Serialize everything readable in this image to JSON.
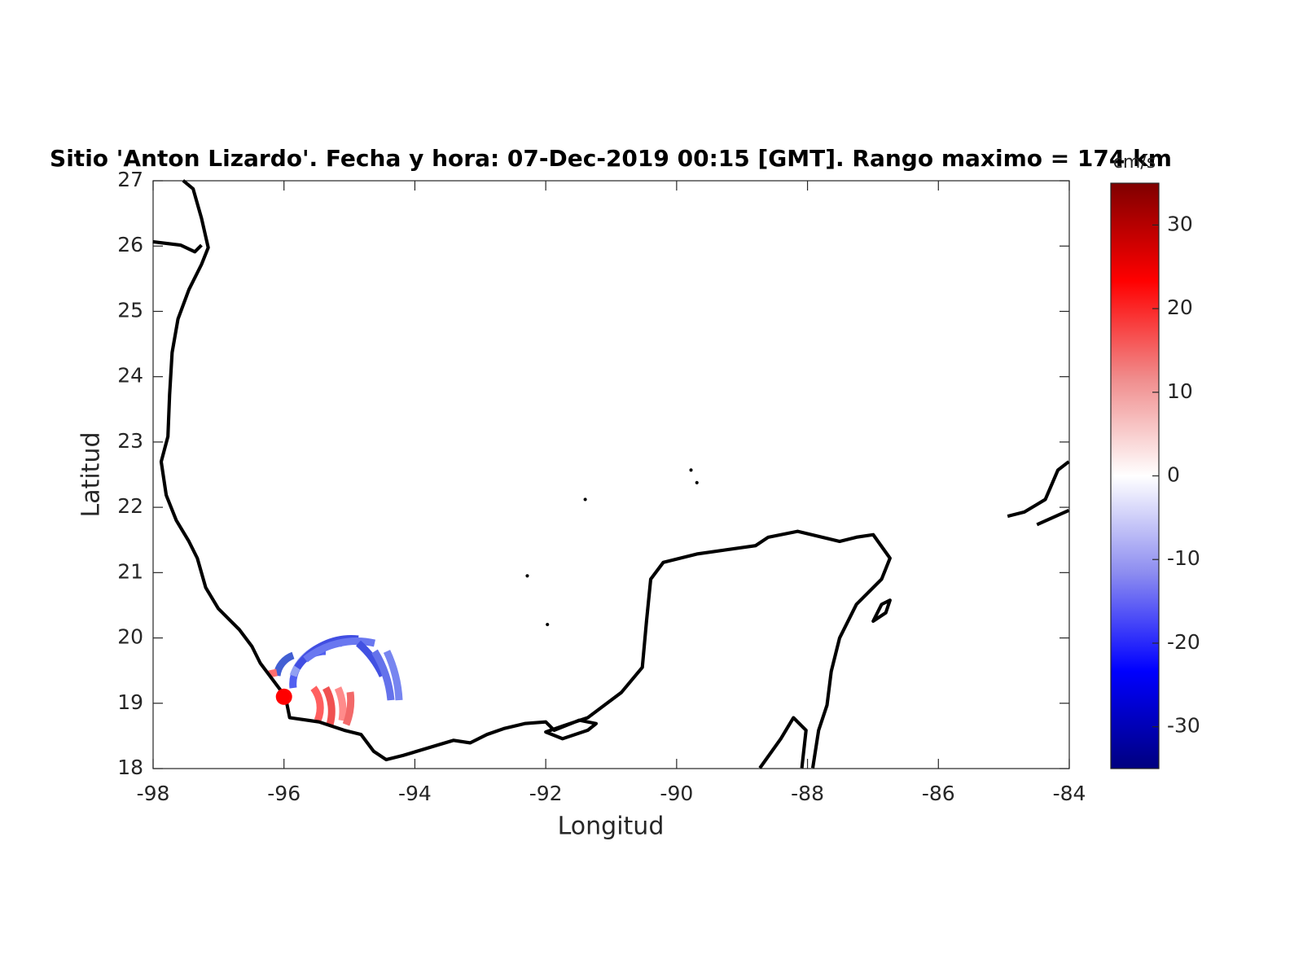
{
  "chart_data": {
    "type": "map",
    "title": "Sitio 'Anton Lizardo'. Fecha y hora: 07-Dec-2019 00:15 [GMT]. Rango maximo = 174 km",
    "xlabel": "Longitud",
    "ylabel": "Latitud",
    "xlim": [
      -98,
      -84
    ],
    "ylim": [
      18,
      27
    ],
    "xticks": [
      -98,
      -96,
      -94,
      -92,
      -90,
      -88,
      -86,
      -84
    ],
    "yticks": [
      18,
      19,
      20,
      21,
      22,
      23,
      24,
      25,
      26,
      27
    ],
    "grid": false,
    "site": {
      "x": -96.0,
      "y": 19.1,
      "color": "#ff0000"
    },
    "colorbar": {
      "label": "cm/s",
      "clim": [
        -35,
        35
      ],
      "ticks": [
        -30,
        -20,
        -10,
        0,
        10,
        20,
        30
      ],
      "colormap": [
        "#00007f",
        "#0000ff",
        "#8c8cf0",
        "#ffffff",
        "#f08c8c",
        "#ff0000",
        "#7f0000"
      ]
    }
  }
}
